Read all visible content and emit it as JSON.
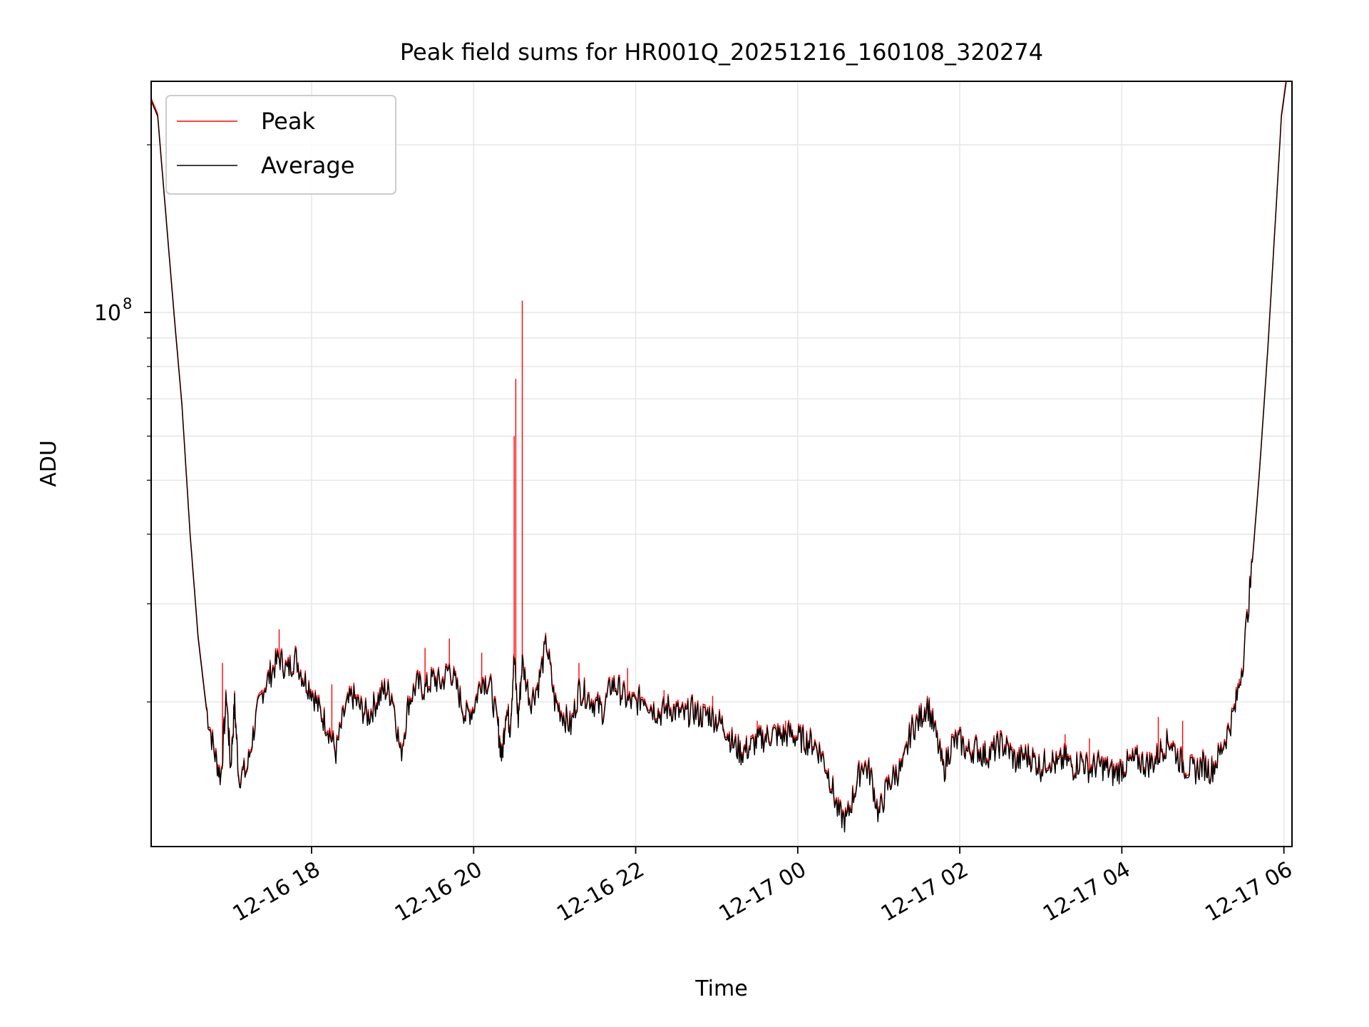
{
  "chart_data": {
    "type": "line",
    "title": "Peak field sums for HR001Q_20251216_160108_320274",
    "xlabel": "Time",
    "ylabel": "ADU",
    "yscale": "log",
    "ylim": [
      11000000,
      260000000
    ],
    "xlim_hours": [
      16.02,
      30.1
    ],
    "x_ticks": [
      {
        "h": 18,
        "label": "12-16 18"
      },
      {
        "h": 20,
        "label": "12-16 20"
      },
      {
        "h": 22,
        "label": "12-16 22"
      },
      {
        "h": 24,
        "label": "12-17 00"
      },
      {
        "h": 26,
        "label": "12-17 02"
      },
      {
        "h": 28,
        "label": "12-17 04"
      },
      {
        "h": 30,
        "label": "12-17 06"
      }
    ],
    "y_major_ticks": [
      {
        "value": 100000000,
        "base": "10",
        "exp": "8"
      }
    ],
    "y_minor_ticks": [
      20000000,
      30000000,
      40000000,
      50000000,
      60000000,
      70000000,
      80000000,
      90000000,
      200000000
    ],
    "grid": true,
    "legend_position": "top-left",
    "series": [
      {
        "name": "Peak",
        "color": "#ff0000",
        "note": "tracks Average with intermittent upward spikes",
        "spikes": [
          {
            "h": 16.9,
            "value": 23500000
          },
          {
            "h": 17.05,
            "value": 20500000
          },
          {
            "h": 17.6,
            "value": 27000000
          },
          {
            "h": 18.25,
            "value": 21500000
          },
          {
            "h": 19.4,
            "value": 25000000
          },
          {
            "h": 19.7,
            "value": 26000000
          },
          {
            "h": 20.1,
            "value": 24500000
          },
          {
            "h": 20.5,
            "value": 60000000
          },
          {
            "h": 20.52,
            "value": 76000000
          },
          {
            "h": 20.6,
            "value": 105000000
          },
          {
            "h": 21.3,
            "value": 23500000
          },
          {
            "h": 21.9,
            "value": 23000000
          },
          {
            "h": 22.35,
            "value": 21000000
          },
          {
            "h": 22.95,
            "value": 20500000
          },
          {
            "h": 23.5,
            "value": 18500000
          },
          {
            "h": 23.85,
            "value": 18500000
          },
          {
            "h": 25.6,
            "value": 20500000
          },
          {
            "h": 26.5,
            "value": 17800000
          },
          {
            "h": 27.3,
            "value": 17500000
          },
          {
            "h": 27.6,
            "value": 17200000
          },
          {
            "h": 28.45,
            "value": 18800000
          },
          {
            "h": 28.75,
            "value": 18500000
          },
          {
            "h": 29.45,
            "value": 22000000
          }
        ]
      },
      {
        "name": "Average",
        "color": "#000000",
        "points": [
          [
            16.02,
            240000000
          ],
          [
            16.1,
            225000000
          ],
          [
            16.2,
            150000000
          ],
          [
            16.3,
            100000000
          ],
          [
            16.4,
            68000000
          ],
          [
            16.5,
            40000000
          ],
          [
            16.6,
            26000000
          ],
          [
            16.7,
            19500000
          ],
          [
            16.8,
            16200000
          ],
          [
            16.88,
            14600000
          ],
          [
            16.95,
            20500000
          ],
          [
            17.0,
            15200000
          ],
          [
            17.05,
            19800000
          ],
          [
            17.1,
            14700000
          ],
          [
            17.2,
            15000000
          ],
          [
            17.3,
            18200000
          ],
          [
            17.4,
            21000000
          ],
          [
            17.5,
            22500000
          ],
          [
            17.6,
            24000000
          ],
          [
            17.7,
            22700000
          ],
          [
            17.8,
            24000000
          ],
          [
            17.9,
            22000000
          ],
          [
            18.0,
            21000000
          ],
          [
            18.1,
            19200000
          ],
          [
            18.2,
            18000000
          ],
          [
            18.3,
            16200000
          ],
          [
            18.4,
            19000000
          ],
          [
            18.5,
            20500000
          ],
          [
            18.6,
            19500000
          ],
          [
            18.7,
            18800000
          ],
          [
            18.8,
            20000000
          ],
          [
            18.9,
            21000000
          ],
          [
            19.0,
            20500000
          ],
          [
            19.1,
            16000000
          ],
          [
            19.2,
            20000000
          ],
          [
            19.3,
            21500000
          ],
          [
            19.4,
            21000000
          ],
          [
            19.5,
            22000000
          ],
          [
            19.6,
            21500000
          ],
          [
            19.7,
            23000000
          ],
          [
            19.8,
            21000000
          ],
          [
            19.9,
            18800000
          ],
          [
            20.0,
            19500000
          ],
          [
            20.1,
            22000000
          ],
          [
            20.2,
            21500000
          ],
          [
            20.3,
            18000000
          ],
          [
            20.35,
            15800000
          ],
          [
            20.4,
            19500000
          ],
          [
            20.45,
            18000000
          ],
          [
            20.5,
            24000000
          ],
          [
            20.55,
            18500000
          ],
          [
            20.6,
            23500000
          ],
          [
            20.7,
            20000000
          ],
          [
            20.8,
            21500000
          ],
          [
            20.9,
            25500000
          ],
          [
            21.0,
            20000000
          ],
          [
            21.1,
            19000000
          ],
          [
            21.2,
            18000000
          ],
          [
            21.3,
            21000000
          ],
          [
            21.4,
            20500000
          ],
          [
            21.5,
            19800000
          ],
          [
            21.6,
            19200000
          ],
          [
            21.7,
            21500000
          ],
          [
            21.8,
            21000000
          ],
          [
            21.9,
            20000000
          ],
          [
            22.0,
            19800000
          ],
          [
            22.1,
            20500000
          ],
          [
            22.2,
            19500000
          ],
          [
            22.3,
            19000000
          ],
          [
            22.4,
            19500000
          ],
          [
            22.5,
            19200000
          ],
          [
            22.6,
            18800000
          ],
          [
            22.7,
            19300000
          ],
          [
            22.8,
            18800000
          ],
          [
            22.9,
            19000000
          ],
          [
            23.0,
            18500000
          ],
          [
            23.1,
            18000000
          ],
          [
            23.2,
            16800000
          ],
          [
            23.3,
            16200000
          ],
          [
            23.4,
            16500000
          ],
          [
            23.5,
            17000000
          ],
          [
            23.6,
            17200000
          ],
          [
            23.7,
            17500000
          ],
          [
            23.8,
            17300000
          ],
          [
            23.9,
            17500000
          ],
          [
            24.0,
            17200000
          ],
          [
            24.1,
            17000000
          ],
          [
            24.2,
            16800000
          ],
          [
            24.3,
            16000000
          ],
          [
            24.4,
            14500000
          ],
          [
            24.5,
            12600000
          ],
          [
            24.6,
            12200000
          ],
          [
            24.7,
            13800000
          ],
          [
            24.8,
            15500000
          ],
          [
            24.9,
            14800000
          ],
          [
            25.0,
            12500000
          ],
          [
            25.1,
            14000000
          ],
          [
            25.2,
            14800000
          ],
          [
            25.3,
            15200000
          ],
          [
            25.4,
            17800000
          ],
          [
            25.5,
            18500000
          ],
          [
            25.6,
            19800000
          ],
          [
            25.7,
            17500000
          ],
          [
            25.8,
            15000000
          ],
          [
            25.9,
            16800000
          ],
          [
            26.0,
            17000000
          ],
          [
            26.1,
            16200000
          ],
          [
            26.2,
            16500000
          ],
          [
            26.3,
            16000000
          ],
          [
            26.4,
            16200000
          ],
          [
            26.5,
            16800000
          ],
          [
            26.6,
            16400000
          ],
          [
            26.7,
            15500000
          ],
          [
            26.8,
            16000000
          ],
          [
            26.9,
            15800000
          ],
          [
            27.0,
            15200000
          ],
          [
            27.1,
            15800000
          ],
          [
            27.2,
            15300000
          ],
          [
            27.3,
            15800000
          ],
          [
            27.4,
            15200000
          ],
          [
            27.5,
            15700000
          ],
          [
            27.6,
            15100000
          ],
          [
            27.7,
            15400000
          ],
          [
            27.8,
            15200000
          ],
          [
            27.9,
            14800000
          ],
          [
            28.0,
            15200000
          ],
          [
            28.1,
            15500000
          ],
          [
            28.2,
            15700000
          ],
          [
            28.3,
            15400000
          ],
          [
            28.4,
            15600000
          ],
          [
            28.5,
            16500000
          ],
          [
            28.6,
            17000000
          ],
          [
            28.7,
            15800000
          ],
          [
            28.8,
            15200000
          ],
          [
            28.9,
            15000000
          ],
          [
            29.0,
            15400000
          ],
          [
            29.1,
            15000000
          ],
          [
            29.2,
            16000000
          ],
          [
            29.3,
            17500000
          ],
          [
            29.4,
            19500000
          ],
          [
            29.5,
            24000000
          ],
          [
            29.6,
            34000000
          ],
          [
            29.7,
            52000000
          ],
          [
            29.8,
            85000000
          ],
          [
            29.9,
            150000000
          ],
          [
            29.97,
            225000000
          ],
          [
            30.03,
            260000000
          ]
        ]
      }
    ]
  }
}
